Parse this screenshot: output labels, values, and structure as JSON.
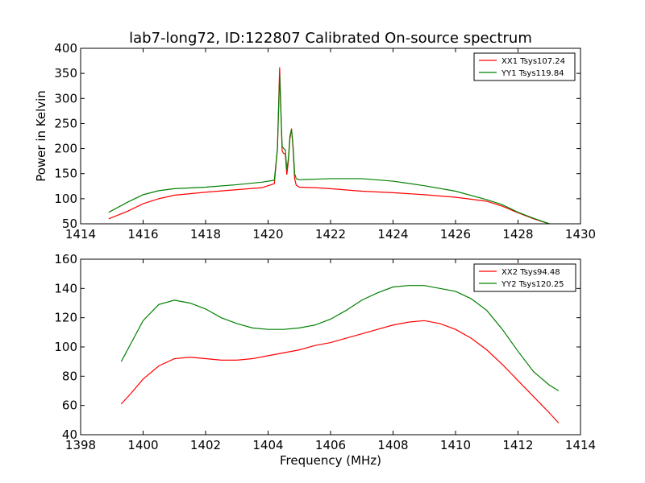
{
  "chart_data": [
    {
      "type": "line",
      "title": "lab7-long72, ID:122807 Calibrated On-source spectrum",
      "xlabel": "",
      "ylabel": "Power in Kelvin",
      "xlim": [
        1414,
        1430
      ],
      "ylim": [
        50,
        400
      ],
      "xticks": [
        1414,
        1416,
        1418,
        1420,
        1422,
        1424,
        1426,
        1428,
        1430
      ],
      "yticks": [
        50,
        100,
        150,
        200,
        250,
        300,
        350,
        400
      ],
      "legend_position": "top-right",
      "series": [
        {
          "name": "XX1 Tsys107.24",
          "color": "#ff0000",
          "x": [
            1414.9,
            1415.5,
            1416.0,
            1416.5,
            1417.0,
            1418.0,
            1419.0,
            1419.8,
            1420.2,
            1420.3,
            1420.37,
            1420.4,
            1420.45,
            1420.5,
            1420.55,
            1420.6,
            1420.65,
            1420.7,
            1420.75,
            1420.8,
            1420.85,
            1420.9,
            1421.0,
            1421.5,
            1422.0,
            1423.0,
            1424.0,
            1425.0,
            1426.0,
            1427.0,
            1427.5,
            1428.0,
            1428.5,
            1429.0
          ],
          "y": [
            60,
            75,
            90,
            100,
            107,
            113,
            118,
            122,
            130,
            200,
            362,
            300,
            195,
            190,
            190,
            148,
            175,
            220,
            240,
            200,
            140,
            127,
            123,
            122,
            120,
            115,
            112,
            108,
            103,
            95,
            85,
            72,
            60,
            50
          ]
        },
        {
          "name": "YY1 Tsys119.84",
          "color": "#008000",
          "x": [
            1414.9,
            1415.5,
            1416.0,
            1416.5,
            1417.0,
            1418.0,
            1419.0,
            1419.8,
            1420.2,
            1420.3,
            1420.37,
            1420.4,
            1420.45,
            1420.5,
            1420.55,
            1420.6,
            1420.65,
            1420.7,
            1420.75,
            1420.8,
            1420.85,
            1420.9,
            1421.0,
            1421.5,
            1422.0,
            1423.0,
            1424.0,
            1425.0,
            1426.0,
            1427.0,
            1427.5,
            1428.0,
            1428.5,
            1429.0
          ],
          "y": [
            73,
            93,
            108,
            116,
            120,
            123,
            128,
            133,
            137,
            200,
            348,
            290,
            205,
            200,
            198,
            158,
            180,
            225,
            238,
            205,
            150,
            140,
            138,
            139,
            140,
            140,
            135,
            126,
            115,
            98,
            88,
            73,
            61,
            50
          ]
        }
      ]
    },
    {
      "type": "line",
      "title": "",
      "xlabel": "Frequency (MHz)",
      "ylabel": "",
      "xlim": [
        1398,
        1414
      ],
      "ylim": [
        40,
        160
      ],
      "xticks": [
        1398,
        1400,
        1402,
        1404,
        1406,
        1408,
        1410,
        1412,
        1414
      ],
      "yticks": [
        40,
        60,
        80,
        100,
        120,
        140,
        160
      ],
      "legend_position": "top-right",
      "series": [
        {
          "name": "XX2 Tsys94.48",
          "color": "#ff0000",
          "x": [
            1399.3,
            1399.6,
            1400.0,
            1400.5,
            1401.0,
            1401.5,
            1402.0,
            1402.5,
            1403.0,
            1403.5,
            1404.0,
            1404.5,
            1405.0,
            1405.5,
            1406.0,
            1406.5,
            1407.0,
            1407.5,
            1408.0,
            1408.5,
            1409.0,
            1409.5,
            1410.0,
            1410.5,
            1411.0,
            1411.5,
            1412.0,
            1412.5,
            1413.0,
            1413.3
          ],
          "y": [
            61,
            68,
            78,
            87,
            92,
            93,
            92,
            91,
            91,
            92,
            94,
            96,
            98,
            101,
            103,
            106,
            109,
            112,
            115,
            117,
            118,
            116,
            112,
            106,
            98,
            88,
            77,
            66,
            55,
            48
          ]
        },
        {
          "name": "YY2 Tsys120.25",
          "color": "#008000",
          "x": [
            1399.3,
            1399.6,
            1400.0,
            1400.5,
            1401.0,
            1401.5,
            1402.0,
            1402.5,
            1403.0,
            1403.5,
            1404.0,
            1404.5,
            1405.0,
            1405.5,
            1406.0,
            1406.5,
            1407.0,
            1407.5,
            1408.0,
            1408.5,
            1409.0,
            1409.5,
            1410.0,
            1410.5,
            1411.0,
            1411.5,
            1412.0,
            1412.5,
            1413.0,
            1413.3
          ],
          "y": [
            90,
            102,
            118,
            129,
            132,
            130,
            126,
            120,
            116,
            113,
            112,
            112,
            113,
            115,
            119,
            125,
            132,
            137,
            141,
            142,
            142,
            140,
            138,
            133,
            125,
            112,
            97,
            83,
            74,
            70
          ]
        }
      ]
    }
  ]
}
